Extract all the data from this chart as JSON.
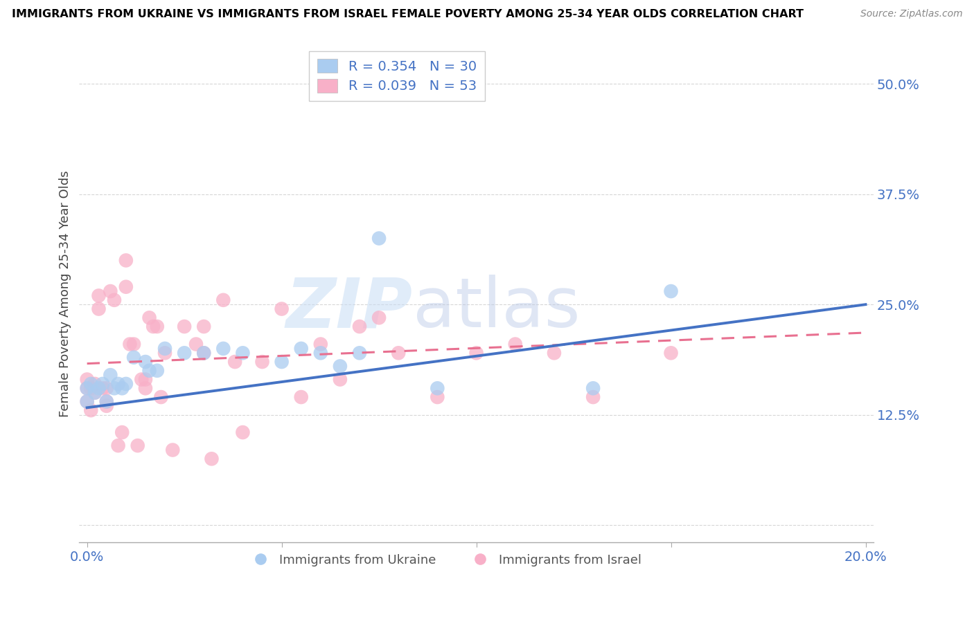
{
  "title": "IMMIGRANTS FROM UKRAINE VS IMMIGRANTS FROM ISRAEL FEMALE POVERTY AMONG 25-34 YEAR OLDS CORRELATION CHART",
  "source": "Source: ZipAtlas.com",
  "ylabel_label": "Female Poverty Among 25-34 Year Olds",
  "xlim": [
    -0.002,
    0.202
  ],
  "ylim": [
    -0.02,
    0.545
  ],
  "xticks": [
    0.0,
    0.05,
    0.1,
    0.15,
    0.2
  ],
  "xtick_labels": [
    "0.0%",
    "",
    "",
    "",
    "20.0%"
  ],
  "ytick_positions": [
    0.0,
    0.125,
    0.25,
    0.375,
    0.5
  ],
  "ytick_labels": [
    "",
    "12.5%",
    "25.0%",
    "37.5%",
    "50.0%"
  ],
  "R_ukraine": 0.354,
  "N_ukraine": 30,
  "R_israel": 0.039,
  "N_israel": 53,
  "color_ukraine": "#aaccf0",
  "color_israel": "#f8b0c8",
  "line_color_ukraine": "#4472c4",
  "line_color_israel": "#e87090",
  "watermark_zip": "ZIP",
  "watermark_atlas": "atlas",
  "ukraine_x": [
    0.0,
    0.0,
    0.001,
    0.002,
    0.003,
    0.004,
    0.005,
    0.006,
    0.007,
    0.008,
    0.009,
    0.01,
    0.012,
    0.015,
    0.016,
    0.018,
    0.02,
    0.025,
    0.03,
    0.035,
    0.04,
    0.05,
    0.055,
    0.06,
    0.065,
    0.07,
    0.075,
    0.09,
    0.13,
    0.15
  ],
  "ukraine_y": [
    0.155,
    0.14,
    0.16,
    0.15,
    0.155,
    0.16,
    0.14,
    0.17,
    0.155,
    0.16,
    0.155,
    0.16,
    0.19,
    0.185,
    0.175,
    0.175,
    0.2,
    0.195,
    0.195,
    0.2,
    0.195,
    0.185,
    0.2,
    0.195,
    0.18,
    0.195,
    0.325,
    0.155,
    0.155,
    0.265
  ],
  "israel_x": [
    0.0,
    0.0,
    0.0,
    0.001,
    0.001,
    0.002,
    0.002,
    0.003,
    0.003,
    0.004,
    0.005,
    0.005,
    0.005,
    0.006,
    0.007,
    0.008,
    0.009,
    0.01,
    0.01,
    0.011,
    0.012,
    0.013,
    0.014,
    0.015,
    0.015,
    0.016,
    0.017,
    0.018,
    0.019,
    0.02,
    0.022,
    0.025,
    0.028,
    0.03,
    0.03,
    0.032,
    0.035,
    0.038,
    0.04,
    0.045,
    0.05,
    0.055,
    0.06,
    0.065,
    0.07,
    0.075,
    0.08,
    0.09,
    0.1,
    0.11,
    0.12,
    0.13,
    0.15
  ],
  "israel_y": [
    0.165,
    0.155,
    0.14,
    0.155,
    0.13,
    0.16,
    0.15,
    0.245,
    0.26,
    0.155,
    0.155,
    0.14,
    0.135,
    0.265,
    0.255,
    0.09,
    0.105,
    0.27,
    0.3,
    0.205,
    0.205,
    0.09,
    0.165,
    0.155,
    0.165,
    0.235,
    0.225,
    0.225,
    0.145,
    0.195,
    0.085,
    0.225,
    0.205,
    0.225,
    0.195,
    0.075,
    0.255,
    0.185,
    0.105,
    0.185,
    0.245,
    0.145,
    0.205,
    0.165,
    0.225,
    0.235,
    0.195,
    0.145,
    0.195,
    0.205,
    0.195,
    0.145,
    0.195
  ],
  "ukraine_line_x": [
    0.0,
    0.2
  ],
  "ukraine_line_y": [
    0.133,
    0.25
  ],
  "israel_line_x": [
    0.0,
    0.2
  ],
  "israel_line_y": [
    0.183,
    0.218
  ]
}
